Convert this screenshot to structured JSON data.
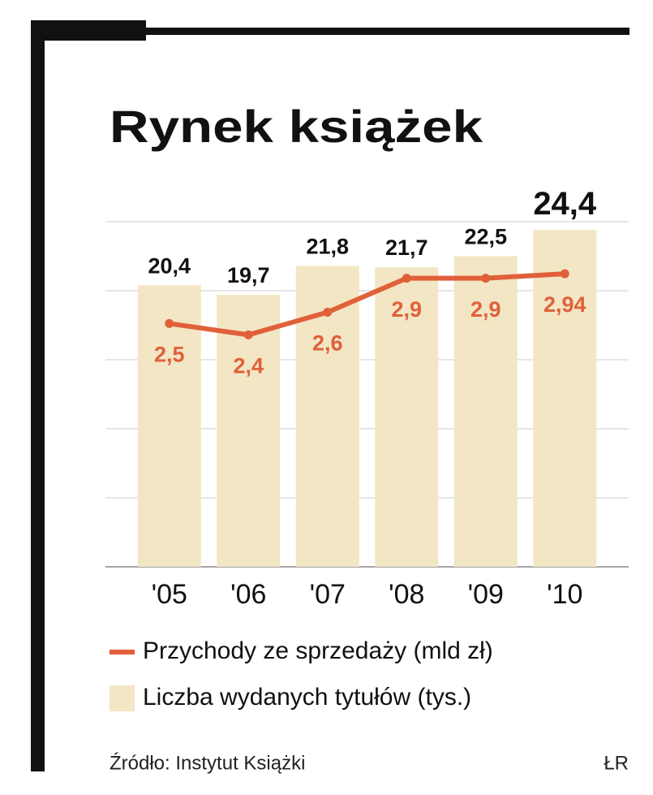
{
  "chart_data": {
    "type": "bar",
    "title": "Rynek książek",
    "categories": [
      "'05",
      "'06",
      "'07",
      "'08",
      "'09",
      "'10"
    ],
    "series": [
      {
        "name": "Liczba wydanych tytułów (tys.)",
        "type": "bar",
        "color": "#f3e6c4",
        "values": [
          20.4,
          19.7,
          21.8,
          21.7,
          22.5,
          24.4
        ],
        "value_labels": [
          "20,4",
          "19,7",
          "21,8",
          "21,7",
          "22,5",
          "24,4"
        ]
      },
      {
        "name": "Przychody ze sprzedaży (mld zł)",
        "type": "line",
        "axis": "y2",
        "color": "#e0603a",
        "values": [
          2.5,
          2.4,
          2.6,
          2.9,
          2.9,
          2.94
        ],
        "value_labels": [
          "2,5",
          "2,4",
          "2,6",
          "2,9",
          "2,9",
          "2,94"
        ]
      }
    ],
    "legend_order": [
      1,
      0
    ],
    "ylim": [
      0,
      25
    ],
    "yticks": [
      0,
      5,
      10,
      15,
      20,
      25
    ],
    "y2lim": [
      0.35,
      3.4
    ],
    "grid": true,
    "source": "Źródło: Instytut Książki",
    "credit": "ŁR"
  }
}
